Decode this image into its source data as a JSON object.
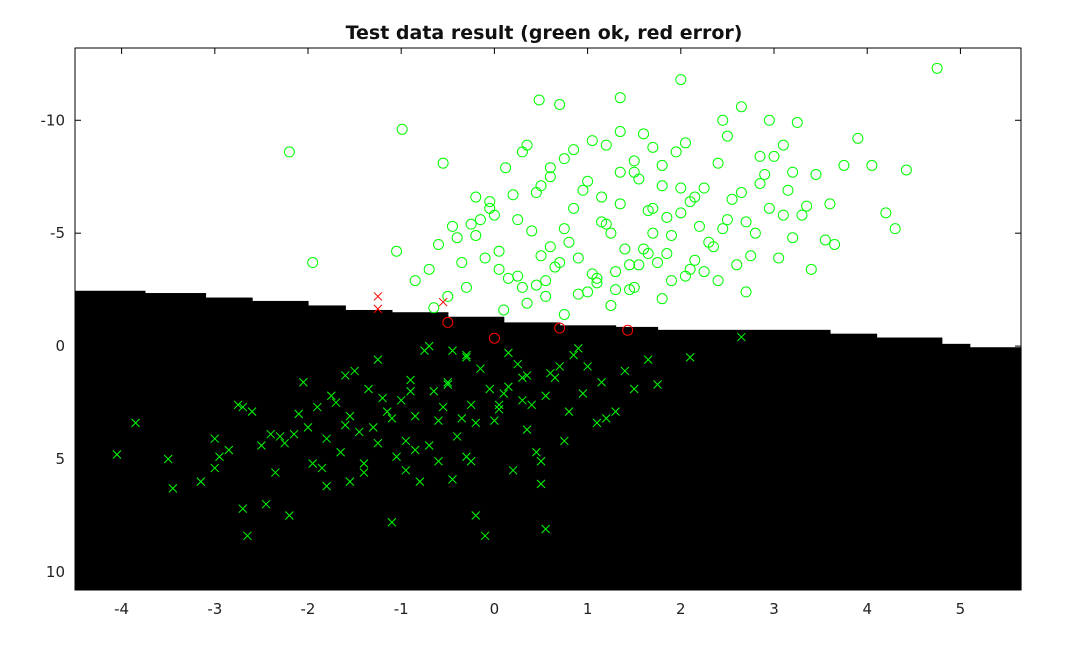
{
  "chart_data": {
    "type": "scatter",
    "title": "Test data result (green ok, red error)",
    "xlabel": "",
    "ylabel": "",
    "xlim": [
      -4.5,
      5.65
    ],
    "ylim": [
      10.8,
      -13.2
    ],
    "y_axis_reversed": true,
    "grid": false,
    "legend": "none",
    "x_ticks": [
      -4,
      -3,
      -2,
      -1,
      0,
      1,
      2,
      3,
      4,
      5
    ],
    "y_ticks": [
      -10,
      -5,
      0,
      5,
      10
    ],
    "colors": {
      "ok": "#00ff00",
      "error": "#ff0000",
      "region": "#000000",
      "background": "#ffffff"
    },
    "decision_boundary": {
      "description": "black region is class-1 area below a staircase boundary",
      "steps": [
        {
          "x0": -4.5,
          "x1": -3.75,
          "y": -2.45
        },
        {
          "x0": -3.75,
          "x1": -3.1,
          "y": -2.35
        },
        {
          "x0": -3.1,
          "x1": -2.6,
          "y": -2.15
        },
        {
          "x0": -2.6,
          "x1": -2.0,
          "y": -2.0
        },
        {
          "x0": -2.0,
          "x1": -1.6,
          "y": -1.8
        },
        {
          "x0": -1.6,
          "x1": -1.1,
          "y": -1.6
        },
        {
          "x0": -1.1,
          "x1": -0.5,
          "y": -1.5
        },
        {
          "x0": -0.5,
          "x1": 0.1,
          "y": -1.3
        },
        {
          "x0": 0.1,
          "x1": 0.7,
          "y": -1.05
        },
        {
          "x0": 0.7,
          "x1": 1.3,
          "y": -0.92
        },
        {
          "x0": 1.3,
          "x1": 1.75,
          "y": -0.85
        },
        {
          "x0": 1.75,
          "x1": 2.3,
          "y": -0.72
        },
        {
          "x0": 2.3,
          "x1": 3.6,
          "y": -0.72
        },
        {
          "x0": 3.6,
          "x1": 4.1,
          "y": -0.55
        },
        {
          "x0": 4.1,
          "x1": 4.8,
          "y": -0.38
        },
        {
          "x0": 4.8,
          "x1": 5.1,
          "y": -0.1
        },
        {
          "x0": 5.1,
          "x1": 5.65,
          "y": 0.05
        }
      ]
    },
    "series": [
      {
        "marker": "circle",
        "color": "#00ff00",
        "status": "ok",
        "x": [
          -2.2,
          -1.95,
          -0.99,
          -0.55,
          -0.2,
          -0.15,
          -0.05,
          0.12,
          0.35,
          0.48,
          0.7,
          1.35,
          1.7,
          2.0,
          2.45,
          2.65,
          2.95,
          3.1,
          3.25,
          3.65,
          3.9,
          4.05,
          4.2,
          4.3,
          4.42,
          4.75,
          -1.05,
          -0.85,
          -0.7,
          -0.6,
          -0.45,
          -0.35,
          -0.2,
          -0.05,
          0.05,
          0.25,
          0.45,
          0.6,
          0.75,
          0.85,
          1.0,
          1.15,
          1.25,
          1.35,
          1.5,
          1.65,
          1.8,
          1.95,
          2.1,
          2.25,
          2.4,
          2.55,
          2.7,
          2.85,
          3.0,
          3.15,
          3.3,
          3.45,
          3.6,
          3.75,
          0.5,
          0.65,
          0.8,
          1.05,
          1.2,
          1.4,
          1.55,
          1.7,
          1.85,
          2.0,
          2.15,
          2.3,
          2.5,
          2.75,
          2.95,
          3.2,
          3.4,
          0.15,
          0.3,
          0.55,
          0.9,
          1.1,
          1.3,
          1.45,
          1.6,
          1.75,
          1.9,
          2.05,
          2.2,
          2.35,
          2.6,
          2.8,
          3.05,
          3.35,
          3.55,
          -0.4,
          -0.25,
          -0.1,
          0.0,
          0.2,
          0.4,
          0.6,
          0.95,
          1.15,
          1.35,
          1.55,
          1.7,
          1.85,
          2.0,
          2.15,
          2.45,
          2.65,
          2.9,
          3.1,
          0.1,
          0.35,
          0.55,
          0.75,
          1.0,
          1.25,
          1.5,
          1.8,
          2.1,
          2.4,
          -0.65,
          -0.5,
          -0.3,
          0.05,
          0.25,
          0.45,
          0.7,
          0.9,
          1.1,
          1.3,
          1.45,
          1.65,
          1.9,
          2.25,
          2.7,
          0.5,
          0.75,
          1.05,
          1.35,
          1.6,
          0.3,
          0.6,
          0.85,
          1.2,
          1.5,
          1.8,
          2.05,
          2.5,
          2.85,
          3.2
        ],
        "y": [
          -8.6,
          -3.7,
          -9.6,
          -8.1,
          -6.6,
          -5.6,
          -6.1,
          -7.9,
          -8.9,
          -10.9,
          -10.7,
          -11.0,
          -8.8,
          -11.8,
          -10.0,
          -10.6,
          -10.0,
          -8.9,
          -9.9,
          -4.5,
          -9.2,
          -8.0,
          -5.9,
          -5.2,
          -7.8,
          -12.3,
          -4.2,
          -2.9,
          -3.4,
          -4.5,
          -5.3,
          -3.7,
          -4.9,
          -6.4,
          -4.2,
          -5.6,
          -6.8,
          -7.5,
          -5.2,
          -6.1,
          -7.3,
          -6.6,
          -5.0,
          -7.7,
          -8.2,
          -6.0,
          -7.1,
          -8.6,
          -6.4,
          -7.0,
          -8.1,
          -6.5,
          -5.5,
          -7.2,
          -8.4,
          -6.9,
          -5.8,
          -7.6,
          -6.3,
          -8.0,
          -4.0,
          -3.5,
          -4.6,
          -3.2,
          -5.4,
          -4.3,
          -3.6,
          -5.0,
          -4.1,
          -5.9,
          -3.8,
          -4.6,
          -5.6,
          -4.0,
          -6.1,
          -4.8,
          -3.4,
          -3.0,
          -2.6,
          -2.9,
          -3.9,
          -2.8,
          -3.3,
          -2.5,
          -4.3,
          -3.7,
          -4.9,
          -3.1,
          -5.3,
          -4.4,
          -3.6,
          -5.0,
          -3.9,
          -6.2,
          -4.7,
          -4.8,
          -5.4,
          -3.9,
          -5.8,
          -6.7,
          -5.1,
          -4.4,
          -6.9,
          -5.5,
          -6.3,
          -7.4,
          -6.1,
          -5.7,
          -7.0,
          -6.6,
          -5.2,
          -6.8,
          -7.6,
          -5.8,
          -1.6,
          -1.9,
          -2.2,
          -1.4,
          -2.4,
          -1.8,
          -2.6,
          -2.1,
          -3.4,
          -2.9,
          -1.7,
          -2.2,
          -2.6,
          -3.4,
          -3.1,
          -2.7,
          -3.7,
          -2.3,
          -3.0,
          -2.5,
          -3.6,
          -4.1,
          -2.9,
          -3.3,
          -2.4,
          -7.1,
          -8.3,
          -9.1,
          -9.5,
          -9.4,
          -8.6,
          -7.9,
          -8.7,
          -8.9,
          -7.7,
          -8.0,
          -9.0,
          -9.3,
          -8.4,
          -7.7
        ]
      },
      {
        "marker": "x",
        "color": "#00ff00",
        "status": "ok",
        "x": [
          -4.05,
          -3.85,
          -3.5,
          -3.45,
          -3.15,
          -3.0,
          -2.75,
          -2.7,
          -2.65,
          -2.45,
          -2.35,
          -2.3,
          -2.2,
          -2.1,
          -1.95,
          -1.8,
          -1.65,
          -1.55,
          -1.4,
          -1.25,
          -1.1,
          -0.95,
          -0.8,
          -0.7,
          -0.6,
          -0.45,
          -0.3,
          -0.2,
          -0.1,
          0.05,
          0.2,
          0.35,
          0.5,
          0.55,
          0.75,
          0.95,
          1.1,
          1.3,
          1.5,
          1.65,
          1.75,
          2.1,
          2.65,
          -2.85,
          -2.6,
          -2.25,
          -2.0,
          -1.85,
          -1.7,
          -1.45,
          -1.2,
          -1.05,
          -0.85,
          -0.65,
          -0.4,
          -0.25,
          0.0,
          0.15,
          0.3,
          0.45,
          0.65,
          0.8,
          1.0,
          1.2,
          -2.15,
          -1.9,
          -1.6,
          -1.35,
          -1.15,
          -0.9,
          -0.55,
          -0.35,
          -0.15,
          0.1,
          0.25,
          0.4,
          0.6,
          0.85,
          -1.75,
          -1.5,
          -1.3,
          -1.0,
          -0.75,
          -0.5,
          -0.3,
          -0.05,
          0.15,
          0.35,
          0.7,
          0.9,
          1.15,
          1.4,
          -2.5,
          -2.05,
          -1.8,
          -1.55,
          -1.25,
          -0.95,
          -0.6,
          -0.2,
          0.05,
          0.3,
          0.55,
          -1.4,
          -1.1,
          -0.85,
          -0.5,
          -0.25,
          -0.7,
          -0.45,
          0.5,
          -1.6,
          -0.9,
          -3.0,
          -2.4,
          -2.7,
          -0.3,
          -2.95
        ],
        "y": [
          4.8,
          3.4,
          5.0,
          6.3,
          6.0,
          4.1,
          2.6,
          7.2,
          8.4,
          7.0,
          5.6,
          4.0,
          7.5,
          3.0,
          5.2,
          6.2,
          4.7,
          6.0,
          5.2,
          4.3,
          7.8,
          5.5,
          6.0,
          4.4,
          3.3,
          5.9,
          4.9,
          7.5,
          8.4,
          2.8,
          5.5,
          3.7,
          6.1,
          8.1,
          4.2,
          2.1,
          3.4,
          2.9,
          1.9,
          0.6,
          1.7,
          0.5,
          -0.4,
          4.6,
          2.9,
          4.3,
          3.6,
          5.4,
          2.5,
          3.8,
          2.3,
          4.9,
          3.1,
          2.0,
          4.0,
          2.6,
          3.3,
          1.8,
          2.4,
          4.7,
          1.4,
          2.9,
          0.9,
          3.2,
          3.9,
          2.7,
          3.5,
          1.9,
          2.9,
          1.5,
          2.7,
          3.2,
          1.0,
          2.1,
          0.8,
          2.6,
          1.2,
          0.4,
          2.2,
          1.1,
          3.6,
          2.4,
          0.2,
          1.6,
          0.5,
          1.9,
          0.3,
          1.3,
          0.9,
          0.1,
          1.6,
          1.1,
          4.4,
          1.6,
          4.1,
          3.1,
          0.6,
          4.2,
          5.1,
          3.4,
          2.6,
          1.4,
          2.2,
          5.6,
          3.2,
          4.6,
          1.7,
          5.1,
          0.0,
          0.2,
          5.1,
          1.3,
          2.0,
          5.4,
          3.9,
          2.7,
          0.4,
          4.9
        ]
      },
      {
        "marker": "circle",
        "color": "#ff0000",
        "status": "error",
        "x": [
          -0.5,
          0.0,
          0.7,
          1.43
        ],
        "y": [
          -1.05,
          -0.35,
          -0.8,
          -0.7
        ]
      },
      {
        "marker": "x",
        "color": "#ff0000",
        "status": "error",
        "x": [
          -1.25,
          -1.25,
          -0.55
        ],
        "y": [
          -2.2,
          -1.65,
          -1.95
        ]
      }
    ]
  }
}
